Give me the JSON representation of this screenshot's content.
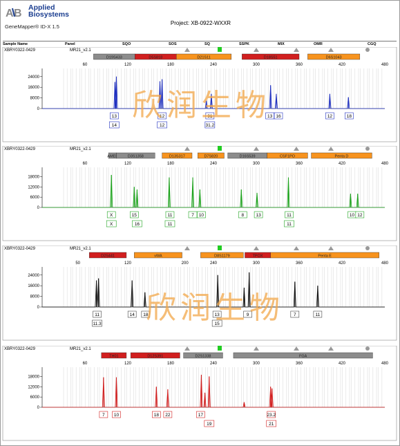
{
  "header": {
    "brand_line1": "Applied",
    "brand_line2": "Biosystems",
    "software": "GeneMapper® ID-X 1.5",
    "project": "Project: XB-0922-WXXR",
    "logo": "ab-logo"
  },
  "columns": [
    "Sample Name",
    "Panel",
    "SQO",
    "SOS",
    "SQ",
    "SSPK",
    "MIX",
    "OMR",
    "CGQ"
  ],
  "watermark": "欣润生物",
  "rows": [
    {
      "sample": "XBRY0322-0429",
      "panel": "MR21_v2.1",
      "color": "#1e2fbf",
      "xticks": [
        60,
        120,
        180,
        240,
        300,
        360,
        420,
        480
      ],
      "yticks": [
        24000,
        16000,
        8000,
        0
      ],
      "ymax": 27000,
      "markers": [
        {
          "name": "D19S433",
          "x0": 72,
          "x1": 130,
          "type": "gray"
        },
        {
          "name": "D5S818",
          "x0": 130,
          "x1": 188,
          "type": "red"
        },
        {
          "name": "D21S11",
          "x0": 188,
          "x1": 265,
          "type": "orange"
        },
        {
          "name": "D18S51",
          "x0": 280,
          "x1": 360,
          "type": "red"
        },
        {
          "name": "D6S1043",
          "x0": 372,
          "x1": 445,
          "type": "orange"
        }
      ],
      "peaks": [
        {
          "x": 102,
          "y": 20000
        },
        {
          "x": 104,
          "y": 24000
        },
        {
          "x": 165,
          "y": 20500
        },
        {
          "x": 168,
          "y": 22000
        },
        {
          "x": 230,
          "y": 6000
        },
        {
          "x": 237,
          "y": 11000
        },
        {
          "x": 320,
          "y": 17500
        },
        {
          "x": 328,
          "y": 11000
        },
        {
          "x": 403,
          "y": 11000
        },
        {
          "x": 429,
          "y": 8500
        }
      ],
      "alleles": [
        {
          "x": 101,
          "l1": "13",
          "l2": "14"
        },
        {
          "x": 168,
          "l1": "12",
          "l2": "12"
        },
        {
          "x": 235,
          "l1": "31",
          "l2": "31.2"
        },
        {
          "x": 319,
          "l1": "13"
        },
        {
          "x": 331,
          "l1": "16"
        },
        {
          "x": 403,
          "l1": "12"
        },
        {
          "x": 430,
          "l1": "18"
        }
      ]
    },
    {
      "sample": "XBRY0322-0429",
      "panel": "MR21_v2.1",
      "color": "#1ea31e",
      "xticks": [
        60,
        120,
        180,
        240,
        300,
        360,
        420,
        480
      ],
      "yticks": [
        18000,
        12000,
        6000,
        0
      ],
      "ymax": 21000,
      "markers": [
        {
          "name": "AMEL",
          "x0": 93,
          "x1": 104,
          "type": "gray"
        },
        {
          "name": "D3S1358",
          "x0": 104,
          "x1": 158,
          "type": "gray"
        },
        {
          "name": "D13S317",
          "x0": 168,
          "x1": 210,
          "type": "orange"
        },
        {
          "name": "D7S820",
          "x0": 218,
          "x1": 255,
          "type": "orange"
        },
        {
          "name": "D16S539",
          "x0": 260,
          "x1": 315,
          "type": "gray"
        },
        {
          "name": "CSF1PO",
          "x0": 315,
          "x1": 372,
          "type": "orange"
        },
        {
          "name": "Penta D",
          "x0": 377,
          "x1": 462,
          "type": "orange"
        }
      ],
      "peaks": [
        {
          "x": 97,
          "y": 19000
        },
        {
          "x": 129,
          "y": 12000
        },
        {
          "x": 133,
          "y": 10500
        },
        {
          "x": 178,
          "y": 17500
        },
        {
          "x": 211,
          "y": 17500
        },
        {
          "x": 221,
          "y": 10500
        },
        {
          "x": 279,
          "y": 10500
        },
        {
          "x": 301,
          "y": 8500
        },
        {
          "x": 345,
          "y": 17500
        },
        {
          "x": 432,
          "y": 8000
        },
        {
          "x": 442,
          "y": 8000
        }
      ],
      "alleles": [
        {
          "x": 97,
          "l1": "X",
          "l2": "X"
        },
        {
          "x": 129,
          "l1": "15"
        },
        {
          "x": 133,
          "l2": "16"
        },
        {
          "x": 179,
          "l1": "11",
          "l2": "11"
        },
        {
          "x": 211,
          "l1": "7"
        },
        {
          "x": 223,
          "l1": "10"
        },
        {
          "x": 281,
          "l1": "8"
        },
        {
          "x": 303,
          "l1": "13"
        },
        {
          "x": 346,
          "l1": "11",
          "l2": "11"
        },
        {
          "x": 434,
          "l1": "10"
        },
        {
          "x": 445,
          "l1": "12"
        }
      ]
    },
    {
      "sample": "XBRY0322-0429",
      "panel": "MR21_v2.1",
      "color": "#111111",
      "xticks": [
        50,
        120,
        200,
        240,
        300,
        360,
        420,
        480
      ],
      "yticks": [
        24000,
        16000,
        8000,
        0
      ],
      "ymax": 27000,
      "markers": [
        {
          "name": "D2S441",
          "x0": 66,
          "x1": 118,
          "type": "red"
        },
        {
          "name": "vWA",
          "x0": 129,
          "x1": 196,
          "type": "orange"
        },
        {
          "name": "D8S1179",
          "x0": 222,
          "x1": 282,
          "type": "orange"
        },
        {
          "name": "TPOX",
          "x0": 284,
          "x1": 320,
          "type": "red"
        },
        {
          "name": "Penta E",
          "x0": 320,
          "x1": 472,
          "type": "orange"
        }
      ],
      "peaks": [
        {
          "x": 76,
          "y": 20000
        },
        {
          "x": 79,
          "y": 21500
        },
        {
          "x": 126,
          "y": 20000
        },
        {
          "x": 144,
          "y": 11000
        },
        {
          "x": 246,
          "y": 24000
        },
        {
          "x": 283,
          "y": 14500
        },
        {
          "x": 290,
          "y": 26000
        },
        {
          "x": 354,
          "y": 19000
        },
        {
          "x": 386,
          "y": 16000
        }
      ],
      "alleles": [
        {
          "x": 77,
          "l1": "11",
          "l2": "11.3"
        },
        {
          "x": 126,
          "l1": "14"
        },
        {
          "x": 145,
          "l1": "18"
        },
        {
          "x": 245,
          "l1": "13",
          "l2": "15"
        },
        {
          "x": 288,
          "l1": "9"
        },
        {
          "x": 354,
          "l1": "7"
        },
        {
          "x": 386,
          "l1": "11"
        }
      ]
    },
    {
      "sample": "XBRY0322-0429",
      "panel": "MR21_v2.1",
      "color": "#d11f1f",
      "xticks": [
        60,
        120,
        180,
        240,
        300,
        360,
        420,
        480
      ],
      "yticks": [
        18000,
        12000,
        6000,
        0
      ],
      "ymax": 21000,
      "markers": [
        {
          "name": "TH01",
          "x0": 83,
          "x1": 118,
          "type": "red"
        },
        {
          "name": "D12S391",
          "x0": 124,
          "x1": 193,
          "type": "red"
        },
        {
          "name": "D2S1338",
          "x0": 198,
          "x1": 253,
          "type": "gray"
        },
        {
          "name": "FGA",
          "x0": 268,
          "x1": 463,
          "type": "gray"
        }
      ],
      "peaks": [
        {
          "x": 86,
          "y": 17500
        },
        {
          "x": 104,
          "y": 17500
        },
        {
          "x": 160,
          "y": 12000
        },
        {
          "x": 176,
          "y": 10500
        },
        {
          "x": 223,
          "y": 19000
        },
        {
          "x": 228,
          "y": 8500
        },
        {
          "x": 234,
          "y": 18000
        },
        {
          "x": 283,
          "y": 3000
        },
        {
          "x": 320,
          "y": 12000
        },
        {
          "x": 322,
          "y": 11000
        }
      ],
      "alleles": [
        {
          "x": 86,
          "l1": "7"
        },
        {
          "x": 104,
          "l1": "10"
        },
        {
          "x": 160,
          "l1": "18"
        },
        {
          "x": 176,
          "l1": "22"
        },
        {
          "x": 222,
          "l1": "17"
        },
        {
          "x": 234,
          "l2": "19"
        },
        {
          "x": 321,
          "l1": "23.2",
          "l2": "21"
        }
      ]
    }
  ],
  "chart_data": [
    {
      "type": "line",
      "xlabel": "",
      "ylabel": "",
      "xlim": [
        0,
        480
      ],
      "ylim": [
        0,
        27000
      ],
      "x_ticks": [
        60,
        120,
        180,
        240,
        300,
        360,
        420,
        480
      ],
      "y_ticks": [
        24000,
        16000,
        8000,
        0
      ],
      "series": [
        {
          "values": [
            [
              102,
              20000
            ],
            [
              104,
              24000
            ],
            [
              165,
              20500
            ],
            [
              168,
              22000
            ],
            [
              230,
              6000
            ],
            [
              237,
              11000
            ],
            [
              320,
              17500
            ],
            [
              328,
              11000
            ],
            [
              403,
              11000
            ],
            [
              429,
              8500
            ]
          ]
        }
      ]
    },
    {
      "type": "line",
      "xlabel": "",
      "ylabel": "",
      "xlim": [
        0,
        480
      ],
      "ylim": [
        0,
        21000
      ],
      "x_ticks": [
        60,
        120,
        180,
        240,
        300,
        360,
        420,
        480
      ],
      "y_ticks": [
        18000,
        12000,
        6000,
        0
      ],
      "series": [
        {
          "values": [
            [
              97,
              19000
            ],
            [
              129,
              12000
            ],
            [
              133,
              10500
            ],
            [
              178,
              17500
            ],
            [
              211,
              17500
            ],
            [
              221,
              10500
            ],
            [
              279,
              10500
            ],
            [
              301,
              8500
            ],
            [
              345,
              17500
            ],
            [
              432,
              8000
            ],
            [
              442,
              8000
            ]
          ]
        }
      ]
    },
    {
      "type": "line",
      "xlabel": "",
      "ylabel": "",
      "xlim": [
        0,
        480
      ],
      "ylim": [
        0,
        27000
      ],
      "x_ticks": [
        50,
        120,
        200,
        240,
        300,
        360,
        420,
        480
      ],
      "y_ticks": [
        24000,
        16000,
        8000,
        0
      ],
      "series": [
        {
          "values": [
            [
              76,
              20000
            ],
            [
              79,
              21500
            ],
            [
              126,
              20000
            ],
            [
              144,
              11000
            ],
            [
              246,
              24000
            ],
            [
              283,
              14500
            ],
            [
              290,
              26000
            ],
            [
              354,
              19000
            ],
            [
              386,
              16000
            ]
          ]
        }
      ]
    },
    {
      "type": "line",
      "xlabel": "",
      "ylabel": "",
      "xlim": [
        0,
        480
      ],
      "ylim": [
        0,
        21000
      ],
      "x_ticks": [
        60,
        120,
        180,
        240,
        300,
        360,
        420,
        480
      ],
      "y_ticks": [
        18000,
        12000,
        6000,
        0
      ],
      "series": [
        {
          "values": [
            [
              86,
              17500
            ],
            [
              104,
              17500
            ],
            [
              160,
              12000
            ],
            [
              176,
              10500
            ],
            [
              223,
              19000
            ],
            [
              228,
              8500
            ],
            [
              234,
              18000
            ],
            [
              283,
              3000
            ],
            [
              320,
              12000
            ],
            [
              322,
              11000
            ]
          ]
        }
      ]
    }
  ]
}
